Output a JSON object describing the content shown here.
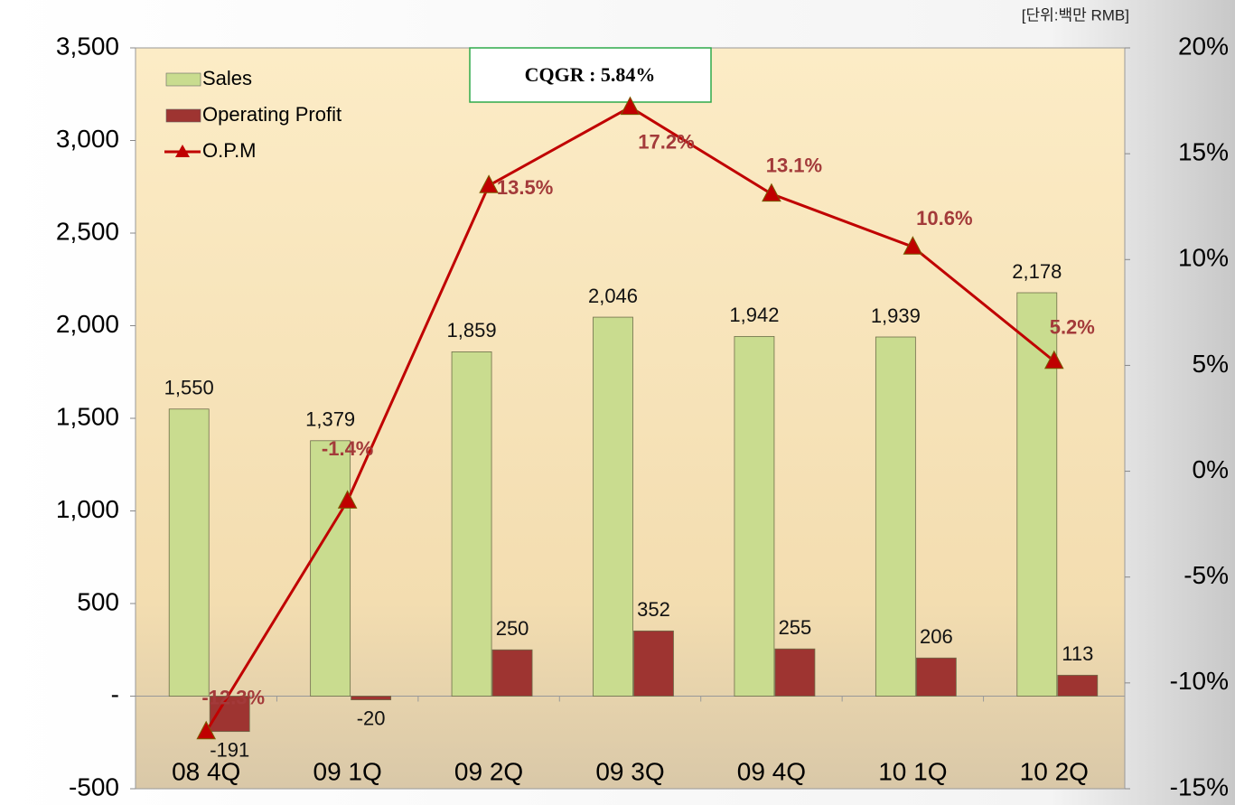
{
  "chart_data": {
    "type": "bar_line",
    "annotation": "CQGR : 5.84%",
    "unit_note": "[단위:백만 RMB]",
    "categories": [
      "08 4Q",
      "09 1Q",
      "09 2Q",
      "09 3Q",
      "09 4Q",
      "10 1Q",
      "10 2Q"
    ],
    "series": [
      {
        "name": "Sales",
        "color": "#c9dc8f",
        "values": [
          1550,
          1379,
          1859,
          2046,
          1942,
          1939,
          2178
        ],
        "value_labels": [
          "1,550",
          "1,379",
          "1,859",
          "2,046",
          "1,942",
          "1,939",
          "2,178"
        ]
      },
      {
        "name": "Operating Profit",
        "color": "#9e3431",
        "values": [
          -191,
          -20,
          250,
          352,
          255,
          206,
          113
        ]
      },
      {
        "name": "O.P.M",
        "color": "#c00000",
        "axis": "y2",
        "values": [
          -12.3,
          -1.4,
          13.5,
          17.2,
          13.1,
          10.6,
          5.2
        ],
        "value_labels": [
          "-12.3%",
          "-1.4%",
          "13.5%",
          "17.2%",
          "13.1%",
          "10.6%",
          "5.2%"
        ]
      }
    ],
    "ylim": [
      -500,
      3500
    ],
    "yticks": [
      {
        "value": 3500,
        "label": "3,500"
      },
      {
        "value": 3000,
        "label": "3,000"
      },
      {
        "value": 2500,
        "label": "2,500"
      },
      {
        "value": 2000,
        "label": "2,000"
      },
      {
        "value": 1500,
        "label": "1,500"
      },
      {
        "value": 1000,
        "label": "1,000"
      },
      500,
      {
        "value": 0,
        "label": "-"
      },
      -500
    ],
    "y2lim": [
      -15,
      20
    ],
    "y2ticks": [
      {
        "value": 20,
        "label": "20%"
      },
      {
        "value": 15,
        "label": "15%"
      },
      {
        "value": 10,
        "label": "10%"
      },
      {
        "value": 5,
        "label": "5%"
      },
      {
        "value": 0,
        "label": "0%"
      },
      {
        "value": -5,
        "label": "-5%"
      },
      {
        "value": -10,
        "label": "-10%"
      },
      {
        "value": -15,
        "label": "-15%"
      }
    ],
    "legend": "top-left"
  }
}
